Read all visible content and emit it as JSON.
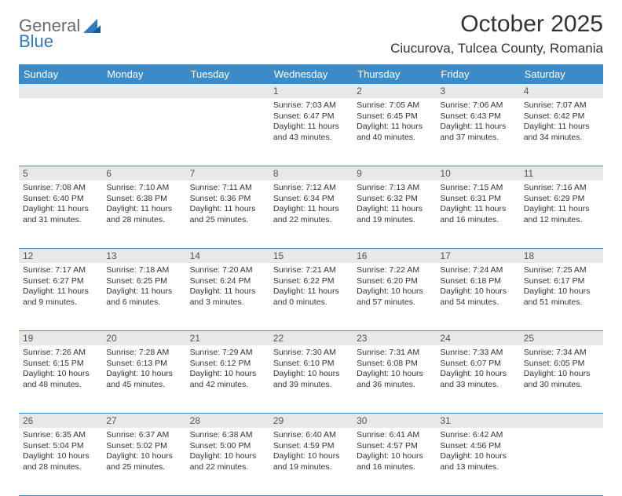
{
  "brand": {
    "part1": "General",
    "part2": "Blue"
  },
  "title": "October 2025",
  "location": "Ciucurova, Tulcea County, Romania",
  "colors": {
    "header_bg": "#3b8bc9",
    "header_text": "#ffffff",
    "row_divider": "#3b8bc9",
    "daynum_bg": "#e8e8e8",
    "text": "#333333",
    "logo_gray": "#6b6b6b",
    "logo_blue": "#2d7bc0",
    "background": "#ffffff"
  },
  "day_headers": [
    "Sunday",
    "Monday",
    "Tuesday",
    "Wednesday",
    "Thursday",
    "Friday",
    "Saturday"
  ],
  "weeks": [
    [
      null,
      null,
      null,
      {
        "n": "1",
        "sr": "Sunrise: 7:03 AM",
        "ss": "Sunset: 6:47 PM",
        "dl1": "Daylight: 11 hours",
        "dl2": "and 43 minutes."
      },
      {
        "n": "2",
        "sr": "Sunrise: 7:05 AM",
        "ss": "Sunset: 6:45 PM",
        "dl1": "Daylight: 11 hours",
        "dl2": "and 40 minutes."
      },
      {
        "n": "3",
        "sr": "Sunrise: 7:06 AM",
        "ss": "Sunset: 6:43 PM",
        "dl1": "Daylight: 11 hours",
        "dl2": "and 37 minutes."
      },
      {
        "n": "4",
        "sr": "Sunrise: 7:07 AM",
        "ss": "Sunset: 6:42 PM",
        "dl1": "Daylight: 11 hours",
        "dl2": "and 34 minutes."
      }
    ],
    [
      {
        "n": "5",
        "sr": "Sunrise: 7:08 AM",
        "ss": "Sunset: 6:40 PM",
        "dl1": "Daylight: 11 hours",
        "dl2": "and 31 minutes."
      },
      {
        "n": "6",
        "sr": "Sunrise: 7:10 AM",
        "ss": "Sunset: 6:38 PM",
        "dl1": "Daylight: 11 hours",
        "dl2": "and 28 minutes."
      },
      {
        "n": "7",
        "sr": "Sunrise: 7:11 AM",
        "ss": "Sunset: 6:36 PM",
        "dl1": "Daylight: 11 hours",
        "dl2": "and 25 minutes."
      },
      {
        "n": "8",
        "sr": "Sunrise: 7:12 AM",
        "ss": "Sunset: 6:34 PM",
        "dl1": "Daylight: 11 hours",
        "dl2": "and 22 minutes."
      },
      {
        "n": "9",
        "sr": "Sunrise: 7:13 AM",
        "ss": "Sunset: 6:32 PM",
        "dl1": "Daylight: 11 hours",
        "dl2": "and 19 minutes."
      },
      {
        "n": "10",
        "sr": "Sunrise: 7:15 AM",
        "ss": "Sunset: 6:31 PM",
        "dl1": "Daylight: 11 hours",
        "dl2": "and 16 minutes."
      },
      {
        "n": "11",
        "sr": "Sunrise: 7:16 AM",
        "ss": "Sunset: 6:29 PM",
        "dl1": "Daylight: 11 hours",
        "dl2": "and 12 minutes."
      }
    ],
    [
      {
        "n": "12",
        "sr": "Sunrise: 7:17 AM",
        "ss": "Sunset: 6:27 PM",
        "dl1": "Daylight: 11 hours",
        "dl2": "and 9 minutes."
      },
      {
        "n": "13",
        "sr": "Sunrise: 7:18 AM",
        "ss": "Sunset: 6:25 PM",
        "dl1": "Daylight: 11 hours",
        "dl2": "and 6 minutes."
      },
      {
        "n": "14",
        "sr": "Sunrise: 7:20 AM",
        "ss": "Sunset: 6:24 PM",
        "dl1": "Daylight: 11 hours",
        "dl2": "and 3 minutes."
      },
      {
        "n": "15",
        "sr": "Sunrise: 7:21 AM",
        "ss": "Sunset: 6:22 PM",
        "dl1": "Daylight: 11 hours",
        "dl2": "and 0 minutes."
      },
      {
        "n": "16",
        "sr": "Sunrise: 7:22 AM",
        "ss": "Sunset: 6:20 PM",
        "dl1": "Daylight: 10 hours",
        "dl2": "and 57 minutes."
      },
      {
        "n": "17",
        "sr": "Sunrise: 7:24 AM",
        "ss": "Sunset: 6:18 PM",
        "dl1": "Daylight: 10 hours",
        "dl2": "and 54 minutes."
      },
      {
        "n": "18",
        "sr": "Sunrise: 7:25 AM",
        "ss": "Sunset: 6:17 PM",
        "dl1": "Daylight: 10 hours",
        "dl2": "and 51 minutes."
      }
    ],
    [
      {
        "n": "19",
        "sr": "Sunrise: 7:26 AM",
        "ss": "Sunset: 6:15 PM",
        "dl1": "Daylight: 10 hours",
        "dl2": "and 48 minutes."
      },
      {
        "n": "20",
        "sr": "Sunrise: 7:28 AM",
        "ss": "Sunset: 6:13 PM",
        "dl1": "Daylight: 10 hours",
        "dl2": "and 45 minutes."
      },
      {
        "n": "21",
        "sr": "Sunrise: 7:29 AM",
        "ss": "Sunset: 6:12 PM",
        "dl1": "Daylight: 10 hours",
        "dl2": "and 42 minutes."
      },
      {
        "n": "22",
        "sr": "Sunrise: 7:30 AM",
        "ss": "Sunset: 6:10 PM",
        "dl1": "Daylight: 10 hours",
        "dl2": "and 39 minutes."
      },
      {
        "n": "23",
        "sr": "Sunrise: 7:31 AM",
        "ss": "Sunset: 6:08 PM",
        "dl1": "Daylight: 10 hours",
        "dl2": "and 36 minutes."
      },
      {
        "n": "24",
        "sr": "Sunrise: 7:33 AM",
        "ss": "Sunset: 6:07 PM",
        "dl1": "Daylight: 10 hours",
        "dl2": "and 33 minutes."
      },
      {
        "n": "25",
        "sr": "Sunrise: 7:34 AM",
        "ss": "Sunset: 6:05 PM",
        "dl1": "Daylight: 10 hours",
        "dl2": "and 30 minutes."
      }
    ],
    [
      {
        "n": "26",
        "sr": "Sunrise: 6:35 AM",
        "ss": "Sunset: 5:04 PM",
        "dl1": "Daylight: 10 hours",
        "dl2": "and 28 minutes."
      },
      {
        "n": "27",
        "sr": "Sunrise: 6:37 AM",
        "ss": "Sunset: 5:02 PM",
        "dl1": "Daylight: 10 hours",
        "dl2": "and 25 minutes."
      },
      {
        "n": "28",
        "sr": "Sunrise: 6:38 AM",
        "ss": "Sunset: 5:00 PM",
        "dl1": "Daylight: 10 hours",
        "dl2": "and 22 minutes."
      },
      {
        "n": "29",
        "sr": "Sunrise: 6:40 AM",
        "ss": "Sunset: 4:59 PM",
        "dl1": "Daylight: 10 hours",
        "dl2": "and 19 minutes."
      },
      {
        "n": "30",
        "sr": "Sunrise: 6:41 AM",
        "ss": "Sunset: 4:57 PM",
        "dl1": "Daylight: 10 hours",
        "dl2": "and 16 minutes."
      },
      {
        "n": "31",
        "sr": "Sunrise: 6:42 AM",
        "ss": "Sunset: 4:56 PM",
        "dl1": "Daylight: 10 hours",
        "dl2": "and 13 minutes."
      },
      null
    ]
  ]
}
